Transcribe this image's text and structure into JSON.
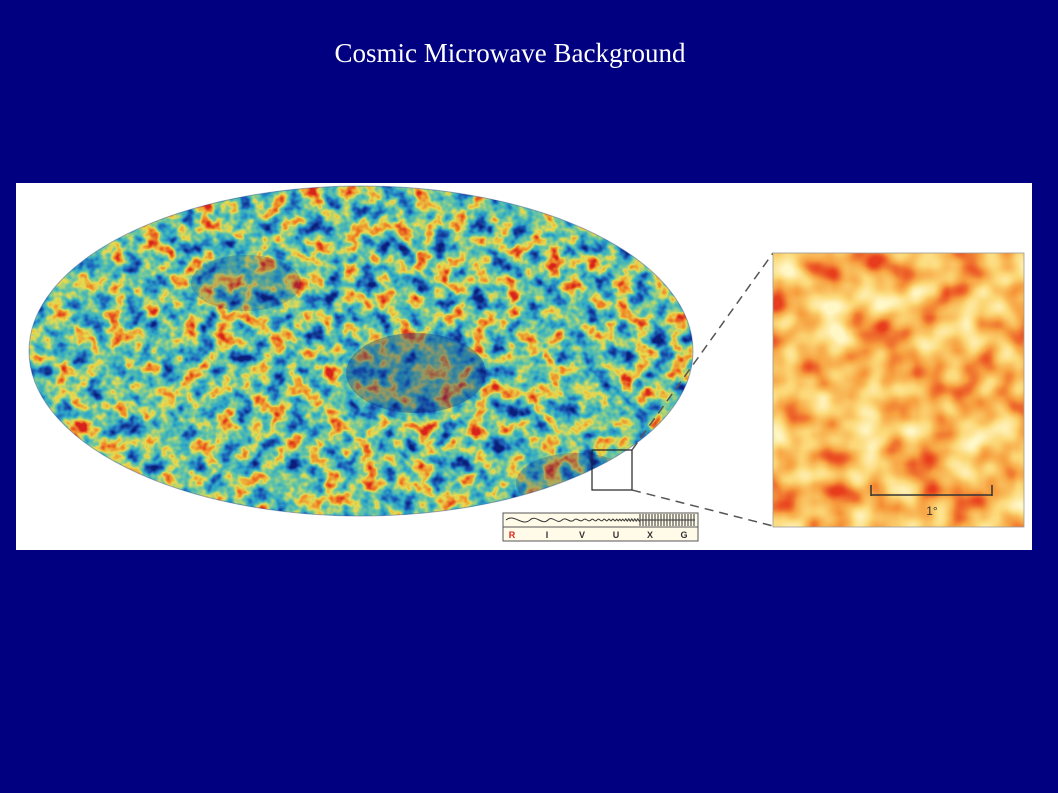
{
  "slide": {
    "title": "Cosmic  Microwave Background"
  },
  "figure": {
    "sky_map": {
      "projection": "mollweide",
      "palette": [
        "#0a1f7a",
        "#1c5fb8",
        "#2fa8c8",
        "#6cc8a0",
        "#e8dc50",
        "#f08a2a",
        "#d8241c"
      ]
    },
    "zoom_inset": {
      "palette": [
        "#fff6c8",
        "#fcd878",
        "#f8a040",
        "#e83c1c"
      ]
    },
    "scale_bar": {
      "label": "1°"
    },
    "spectrum_bar": {
      "bands": [
        "R",
        "I",
        "V",
        "U",
        "X",
        "G"
      ],
      "highlight_band": "R",
      "highlight_color": "#d8241c"
    }
  }
}
